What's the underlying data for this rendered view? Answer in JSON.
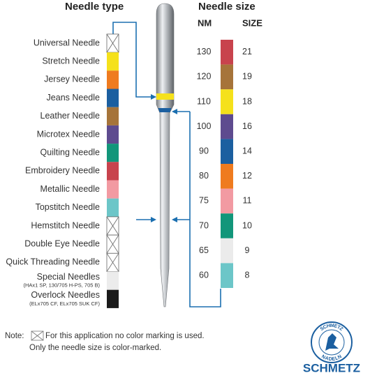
{
  "needle_type": {
    "title": "Needle type",
    "items": [
      {
        "label": "Universal Needle",
        "color": null
      },
      {
        "label": "Stretch Needle",
        "color": "#f5e11b"
      },
      {
        "label": "Jersey Needle",
        "color": "#ef7b1f"
      },
      {
        "label": "Jeans Needle",
        "color": "#1b5fa0"
      },
      {
        "label": "Leather Needle",
        "color": "#a6743a"
      },
      {
        "label": "Microtex Needle",
        "color": "#5e4b8f"
      },
      {
        "label": "Quilting Needle",
        "color": "#12967a"
      },
      {
        "label": "Embroidery Needle",
        "color": "#c8434d"
      },
      {
        "label": "Metallic Needle",
        "color": "#f29aa2"
      },
      {
        "label": "Topstitch Needle",
        "color": "#6cc6c8"
      },
      {
        "label": "Hemstitch Needle",
        "color": null
      },
      {
        "label": "Double Eye Needle",
        "color": null
      },
      {
        "label": "Quick Threading Needle",
        "color": null
      },
      {
        "label": "Special Needles",
        "sublabel": "(HAx1 SP, 130/705 H-PS, 705 B)",
        "color": "#ececec"
      },
      {
        "label": "Overlock Needles",
        "sublabel": "(ELx705 CF, ELx705 SUK CF)",
        "color": "#1a1a1a"
      }
    ]
  },
  "needle_size": {
    "title": "Needle size",
    "nm_header": "NM",
    "size_header": "SIZE",
    "rows": [
      {
        "nm": 130,
        "size": 21,
        "color": "#c8434d"
      },
      {
        "nm": 120,
        "size": 19,
        "color": "#a6743a"
      },
      {
        "nm": 110,
        "size": 18,
        "color": "#f5e11b"
      },
      {
        "nm": 100,
        "size": 16,
        "color": "#5e4b8f"
      },
      {
        "nm": 90,
        "size": 14,
        "color": "#1b5fa0"
      },
      {
        "nm": 80,
        "size": 12,
        "color": "#ef7b1f"
      },
      {
        "nm": 75,
        "size": 11,
        "color": "#f29aa2"
      },
      {
        "nm": 70,
        "size": 10,
        "color": "#12967a"
      },
      {
        "nm": 65,
        "size": 9,
        "color": "#ebebeb"
      },
      {
        "nm": 60,
        "size": 8,
        "color": "#6cc6c8"
      }
    ]
  },
  "note": {
    "prefix": "Note:",
    "line1": "For this application no color marking is used.",
    "line2": "Only the needle size is color-marked."
  },
  "logo": {
    "ring_top": "SCHMETZ",
    "ring_bottom": "NADELN",
    "brand": "SCHMETZ"
  }
}
